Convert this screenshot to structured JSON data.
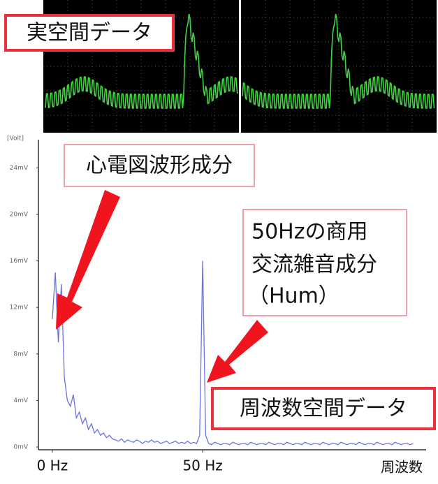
{
  "chart_data": {
    "type": "line",
    "annotations": [
      "実空間データ",
      "心電図波形成分",
      "50Hzの商用",
      "交流雑音成分",
      "（Hum）",
      "周波数空間データ"
    ],
    "y_label": "[Volt]",
    "x_label": "周波数",
    "color": "#6a72e6",
    "xlim": [
      -3,
      122
    ],
    "ylim": [
      0,
      26
    ],
    "xticks": [
      {
        "value": 0,
        "label": "0 Hz"
      },
      {
        "value": 50,
        "label": "50 Hz"
      }
    ],
    "yticks": [
      {
        "value": 0,
        "label": "0mV"
      },
      {
        "value": 4,
        "label": "4mV"
      },
      {
        "value": 8,
        "label": "8mV"
      },
      {
        "value": 12,
        "label": "12mV"
      },
      {
        "value": 16,
        "label": "16mV"
      },
      {
        "value": 20,
        "label": "20mV"
      },
      {
        "value": 24,
        "label": "24mV"
      }
    ],
    "x": [
      0,
      1,
      2,
      3,
      4,
      5,
      6,
      7,
      8,
      9,
      10,
      11,
      12,
      13,
      14,
      15,
      16,
      17,
      18,
      19,
      20,
      21,
      22,
      23,
      24,
      25,
      26,
      27,
      28,
      29,
      30,
      31,
      32,
      33,
      34,
      35,
      36,
      37,
      38,
      39,
      40,
      41,
      42,
      43,
      44,
      45,
      46,
      47,
      48,
      49,
      50,
      51,
      52,
      53,
      54,
      55,
      56,
      57,
      58,
      59,
      60,
      61,
      62,
      63,
      64,
      65,
      66,
      67,
      68,
      69,
      70,
      71,
      72,
      73,
      74,
      75,
      76,
      77,
      78,
      79,
      80,
      81,
      82,
      83,
      84,
      85,
      86,
      87,
      88,
      89,
      90,
      91,
      92,
      93,
      94,
      95,
      96,
      97,
      98,
      99,
      100,
      101,
      102,
      103,
      104,
      105,
      106,
      107,
      108,
      109,
      110,
      111,
      112,
      113,
      114,
      115,
      116,
      117,
      118,
      119,
      120
    ],
    "values": [
      11,
      15,
      9,
      14,
      6,
      4,
      3.5,
      4.5,
      2.5,
      3,
      2,
      2.5,
      1.5,
      2,
      1.2,
      1.5,
      1,
      1.2,
      0.8,
      1,
      0.7,
      0.6,
      0.5,
      0.7,
      0.4,
      0.6,
      0.5,
      0.4,
      0.6,
      0.5,
      0.3,
      0.5,
      0.4,
      0.6,
      0.4,
      0.5,
      0.3,
      0.4,
      0.5,
      0.3,
      0.4,
      0.5,
      0.3,
      0.4,
      0.3,
      0.5,
      0.3,
      0.4,
      0.3,
      1,
      16,
      1,
      0.3,
      0.2,
      0.4,
      0.3,
      0.2,
      0.3,
      0.3,
      0.2,
      0.4,
      0.3,
      0.2,
      0.3,
      0.3,
      0.2,
      0.4,
      0.3,
      0.2,
      0.3,
      0.3,
      0.2,
      0.4,
      0.3,
      0.2,
      0.3,
      0.3,
      0.2,
      0.4,
      0.3,
      0.2,
      0.3,
      0.3,
      0.2,
      0.4,
      0.3,
      0.2,
      0.3,
      0.3,
      0.2,
      0.4,
      0.3,
      0.2,
      0.3,
      0.3,
      0.2,
      0.4,
      0.3,
      0.2,
      0.3,
      0.3,
      0.2,
      0.4,
      0.3,
      0.2,
      0.3,
      0.3,
      0.2,
      0.4,
      0.3,
      0.2,
      0.3,
      0.3,
      0.2,
      0.4,
      0.3,
      0.2,
      0.3,
      0.3,
      0.2,
      0.3
    ]
  }
}
